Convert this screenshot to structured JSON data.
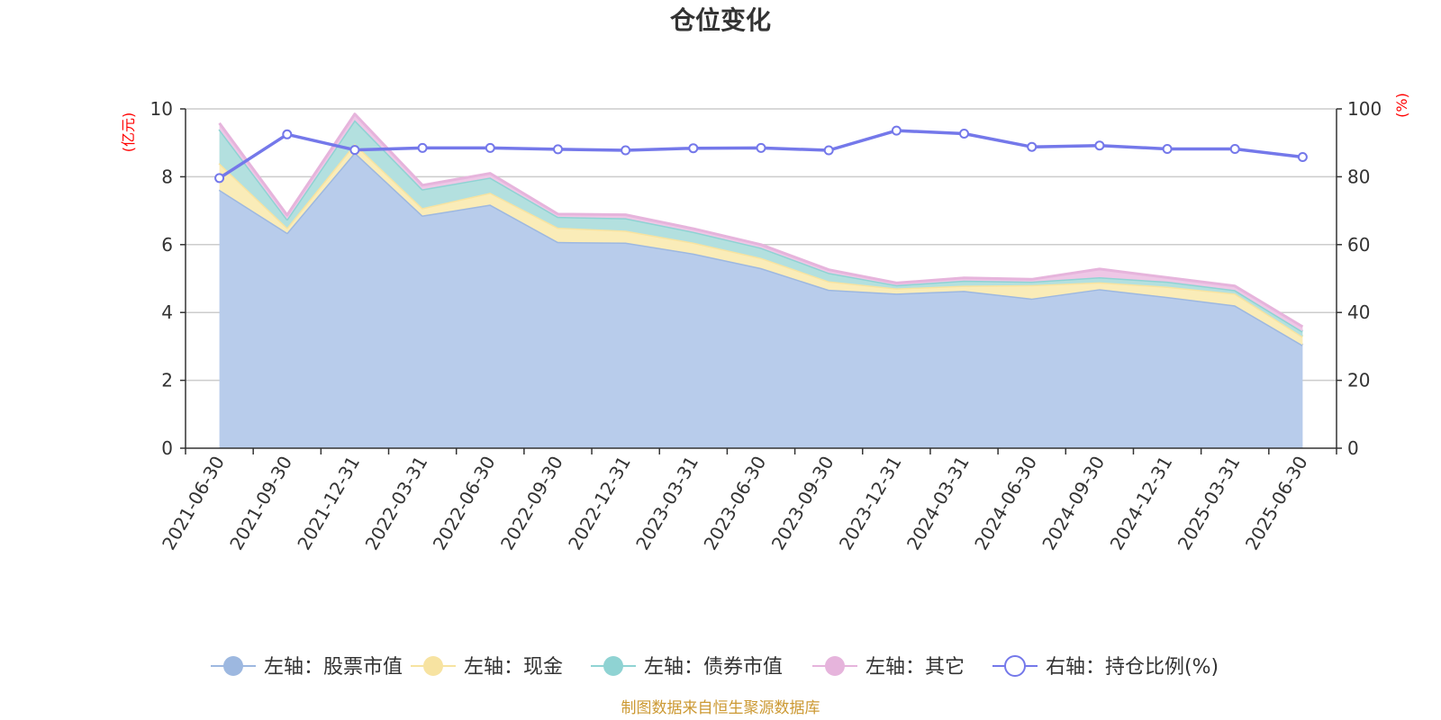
{
  "chart_data": {
    "type": "area",
    "title": "仓位变化",
    "stacked": true,
    "y_left": {
      "label": "(亿元)",
      "ylim": [
        0,
        10
      ],
      "ticks": [
        0,
        2,
        4,
        6,
        8,
        10
      ]
    },
    "y_right": {
      "label": "(%)",
      "ylim": [
        0,
        100
      ],
      "ticks": [
        0,
        20,
        40,
        60,
        80,
        100
      ]
    },
    "x": [
      "2021-06-30",
      "2021-09-30",
      "2021-12-31",
      "2022-03-31",
      "2022-06-30",
      "2022-09-30",
      "2022-12-31",
      "2023-03-31",
      "2023-06-30",
      "2023-09-30",
      "2023-12-31",
      "2024-03-31",
      "2024-06-30",
      "2024-09-30",
      "2024-12-31",
      "2025-03-31",
      "2025-06-30"
    ],
    "series": [
      {
        "name": "左轴：股票市值",
        "axis": "left",
        "type": "area",
        "color": "#9db8e0",
        "fill": "#b8cceb",
        "values": [
          7.62,
          6.35,
          8.72,
          6.86,
          7.18,
          6.08,
          6.06,
          5.74,
          5.31,
          4.67,
          4.56,
          4.64,
          4.41,
          4.69,
          4.46,
          4.21,
          3.04
        ]
      },
      {
        "name": "左轴：现金",
        "axis": "left",
        "type": "area",
        "color": "#f7e3a1",
        "fill": "#faecb8",
        "values": [
          0.78,
          0.15,
          0.25,
          0.22,
          0.35,
          0.42,
          0.35,
          0.32,
          0.3,
          0.25,
          0.15,
          0.15,
          0.4,
          0.2,
          0.3,
          0.35,
          0.25
        ]
      },
      {
        "name": "左轴：债券市值",
        "axis": "left",
        "type": "area",
        "color": "#8fd3d3",
        "fill": "#b3e0df",
        "values": [
          1.0,
          0.25,
          0.7,
          0.55,
          0.45,
          0.32,
          0.37,
          0.32,
          0.3,
          0.25,
          0.1,
          0.15,
          0.1,
          0.15,
          0.15,
          0.1,
          0.15
        ]
      },
      {
        "name": "左轴：其它",
        "axis": "left",
        "type": "area",
        "color": "#e6b4dc",
        "fill": "#eec7e6",
        "values": [
          0.18,
          0.12,
          0.18,
          0.12,
          0.12,
          0.08,
          0.1,
          0.09,
          0.09,
          0.09,
          0.06,
          0.08,
          0.07,
          0.24,
          0.12,
          0.12,
          0.14
        ]
      },
      {
        "name": "右轴：持仓比例(%)",
        "axis": "right",
        "type": "line",
        "color": "#7478ea",
        "values": [
          79.6,
          92.5,
          87.9,
          88.5,
          88.5,
          88.1,
          87.8,
          88.4,
          88.5,
          87.8,
          93.6,
          92.7,
          88.8,
          89.2,
          88.2,
          88.2,
          85.8
        ]
      }
    ],
    "legend_position": "bottom-center",
    "grid": true
  },
  "source_note": "制图数据来自恒生聚源数据库",
  "colors": {
    "title": "#333333",
    "axis_unit": "#ff0000",
    "source": "#cc9933",
    "grid": "#cccccc",
    "axis": "#333333"
  }
}
